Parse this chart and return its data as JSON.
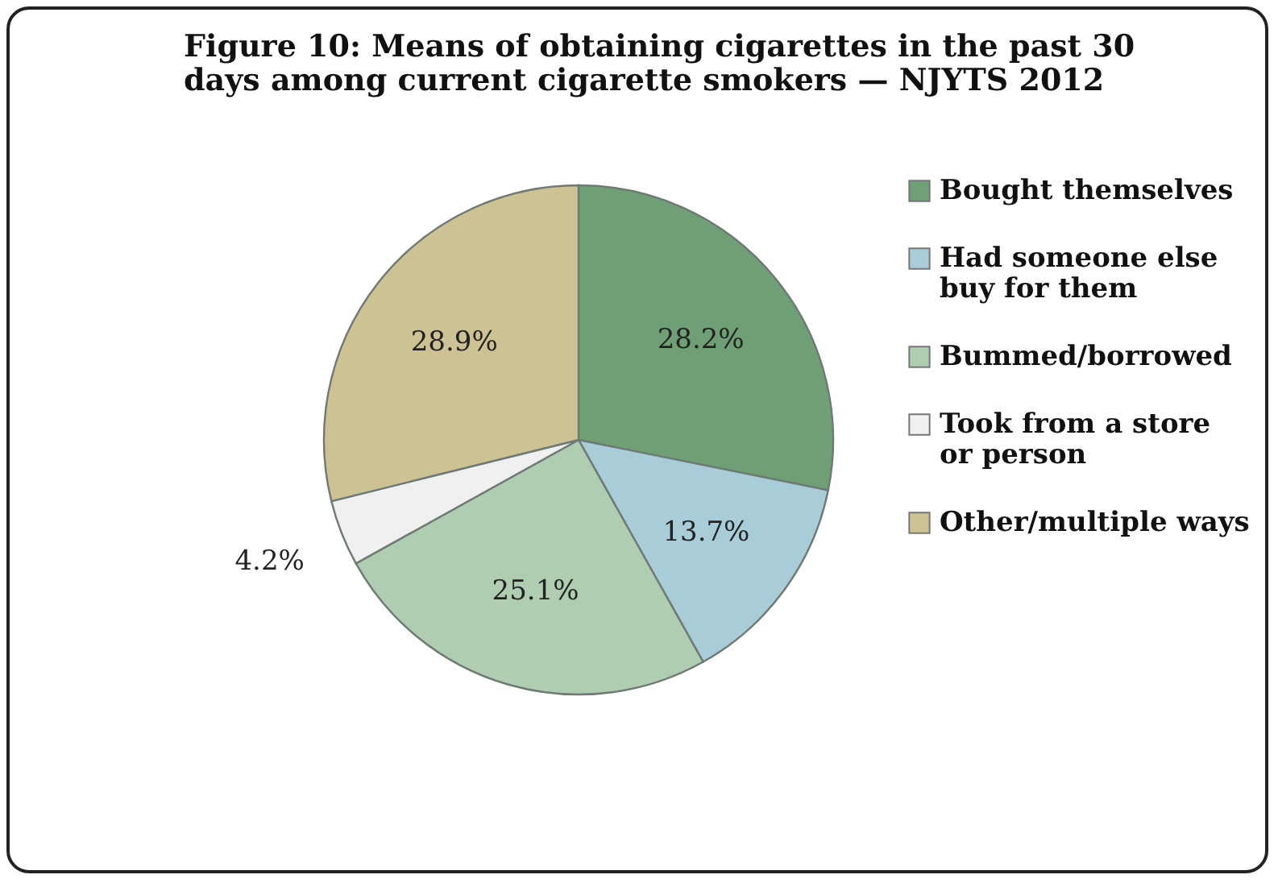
{
  "chart_data": {
    "type": "pie",
    "title": "Figure 10: Means of obtaining cigarettes in the past 30 days among current cigarette smokers — NJYTS 2012",
    "categories": [
      "Bought themselves",
      "Had someone else buy for them",
      "Bummed/borrowed",
      "Took from a store or person",
      "Other/multiple ways"
    ],
    "values": [
      28.2,
      13.7,
      25.1,
      4.2,
      28.9
    ],
    "colors": [
      "#6fa075",
      "#a8cdd8",
      "#afcdb0",
      "#f0f0f0",
      "#cdc293"
    ],
    "value_labels": [
      "28.2%",
      "13.7%",
      "25.1%",
      "4.2%",
      "28.9%"
    ],
    "legend": "right"
  }
}
